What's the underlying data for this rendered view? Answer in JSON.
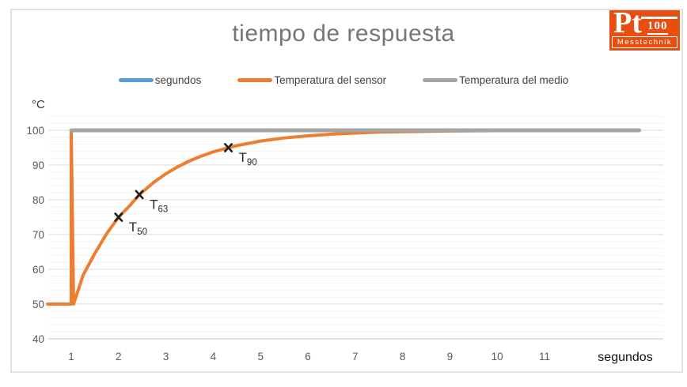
{
  "window": {
    "background": "#FFFFFF",
    "border_color": "#E2E2E2"
  },
  "logo": {
    "brand": "Pt",
    "brand_number": "100",
    "subtitle": "Messtechnik",
    "background": "#E84E0F",
    "text_color": "#FFFFFF"
  },
  "chart_data": {
    "type": "line",
    "title": "tiempo de respuesta",
    "legend_position": "top",
    "grid": "horizontal, minor every 2 and major every 10 degrees",
    "x_axis": {
      "label": "segundos",
      "ticks": [
        "1",
        "2",
        "3",
        "4",
        "5",
        "6",
        "7",
        "8",
        "9",
        "10",
        "11"
      ],
      "min": 0.5,
      "max": 13.5
    },
    "y_axis": {
      "label": "°C",
      "major_ticks": [
        100,
        90,
        80,
        70,
        60,
        50,
        40
      ],
      "min": 40,
      "max": 104,
      "major_step": 10,
      "minor_step": 2
    },
    "series": [
      {
        "name": "segundos",
        "color": "#5B9BD5",
        "line_width": 4,
        "points": []
      },
      {
        "name": "Temperatura del sensor",
        "color": "#ED7D31",
        "line_width": 4,
        "points": [
          [
            0.5,
            50
          ],
          [
            1,
            50
          ],
          [
            1,
            100
          ],
          [
            1.05,
            50
          ],
          [
            1.25,
            58.3
          ],
          [
            1.5,
            64.6
          ],
          [
            1.75,
            70.3
          ],
          [
            2,
            75
          ],
          [
            2.25,
            78.5
          ],
          [
            2.44,
            81.5
          ],
          [
            2.75,
            85.1
          ],
          [
            3,
            87.5
          ],
          [
            3.25,
            89.5
          ],
          [
            3.5,
            91.2
          ],
          [
            3.75,
            92.6
          ],
          [
            4,
            93.8
          ],
          [
            4.32,
            95
          ],
          [
            4.5,
            95.6
          ],
          [
            5,
            96.9
          ],
          [
            5.5,
            97.8
          ],
          [
            6,
            98.4
          ],
          [
            6.5,
            98.9
          ],
          [
            7,
            99.2
          ],
          [
            7.5,
            99.5
          ],
          [
            8,
            99.6
          ],
          [
            9,
            99.8
          ],
          [
            10,
            99.9
          ],
          [
            11,
            99.95
          ],
          [
            12,
            99.98
          ],
          [
            13,
            100
          ]
        ]
      },
      {
        "name": "Temperatura del medio",
        "color": "#A5A5A5",
        "line_width": 5,
        "points": [
          [
            1,
            100
          ],
          [
            13,
            100
          ]
        ]
      }
    ],
    "markers": [
      {
        "name": "T50",
        "base": "T",
        "sub": "50",
        "t": 2,
        "temp": 75
      },
      {
        "name": "T63",
        "base": "T",
        "sub": "63",
        "t": 2.44,
        "temp": 81.5
      },
      {
        "name": "T90",
        "base": "T",
        "sub": "90",
        "t": 4.32,
        "temp": 95
      }
    ]
  }
}
